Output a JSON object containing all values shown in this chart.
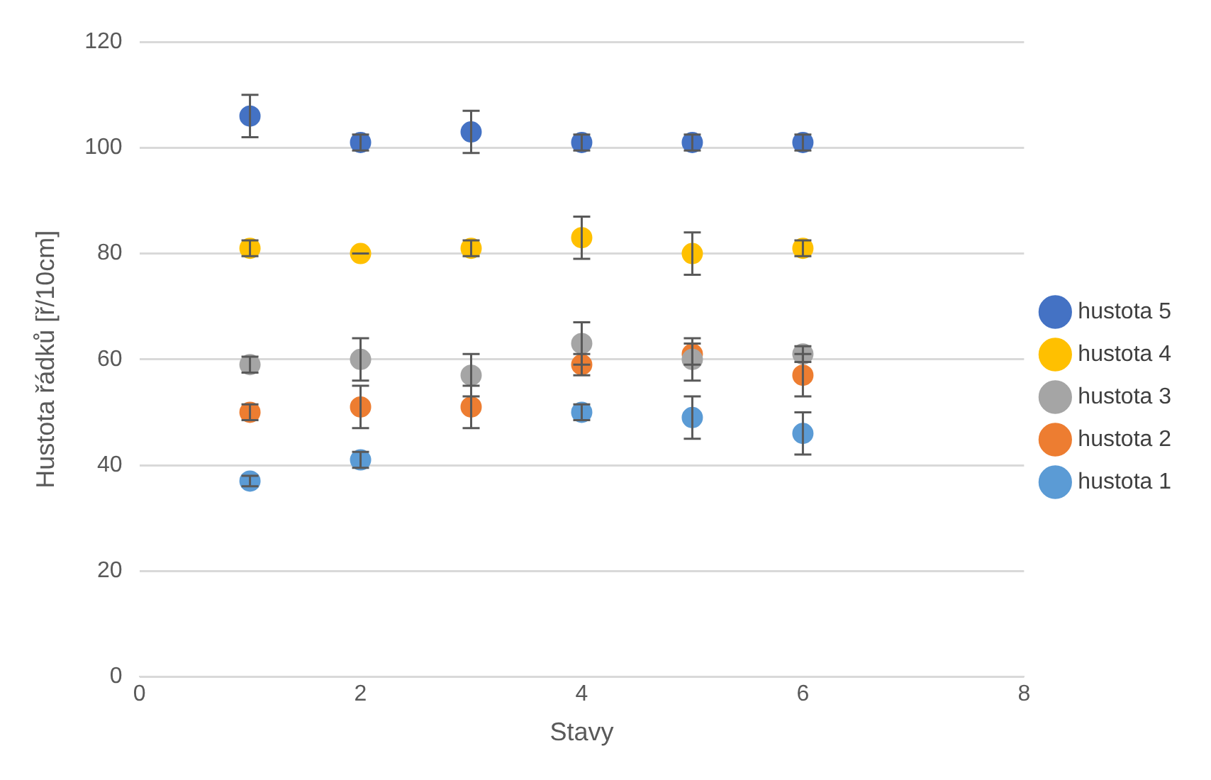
{
  "chart_data": {
    "type": "scatter",
    "xlabel": "Stavy",
    "ylabel": "Hustota řádků [ř/10cm]",
    "x": [
      1,
      2,
      3,
      4,
      5,
      6
    ],
    "xlim": [
      0,
      8
    ],
    "xticks": [
      0,
      2,
      4,
      6,
      8
    ],
    "ylim": [
      0,
      120
    ],
    "yticks": [
      0,
      20,
      40,
      60,
      80,
      100,
      120
    ],
    "grid": "y",
    "legend": "right",
    "marker": "circle",
    "series": [
      {
        "name": "hustota 1",
        "color": "#5b9bd5",
        "values": [
          37,
          41,
          null,
          50,
          49,
          46
        ],
        "errors": [
          1,
          1.5,
          null,
          1.5,
          4,
          4
        ]
      },
      {
        "name": "hustota 2",
        "color": "#ed7d31",
        "values": [
          50,
          51,
          51,
          59,
          61,
          57
        ],
        "errors": [
          1.5,
          4,
          4,
          2,
          2,
          4
        ]
      },
      {
        "name": "hustota 3",
        "color": "#a5a5a5",
        "values": [
          59,
          60,
          57,
          63,
          60,
          61
        ],
        "errors": [
          1.5,
          4,
          4,
          4,
          4,
          1.5
        ]
      },
      {
        "name": "hustota 4",
        "color": "#ffc000",
        "values": [
          81,
          80,
          81,
          83,
          80,
          81
        ],
        "errors": [
          1.5,
          0,
          1.5,
          4,
          4,
          1.5
        ]
      },
      {
        "name": "hustota 5",
        "color": "#4472c4",
        "values": [
          106,
          101,
          103,
          101,
          101,
          101
        ],
        "errors": [
          4,
          1.5,
          4,
          1.5,
          1.5,
          1.5
        ]
      }
    ]
  }
}
